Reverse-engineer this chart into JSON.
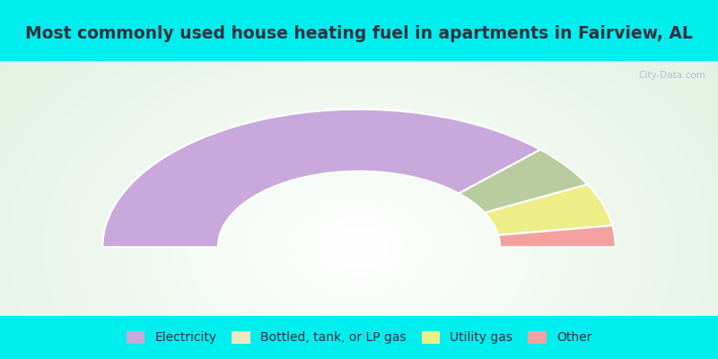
{
  "title": "Most commonly used house heating fuel in apartments in Fairview, AL",
  "segments": [
    {
      "label": "Electricity",
      "value": 75,
      "color": "#C9A8DC"
    },
    {
      "label": "Bottled, tank, or LP gas",
      "value": 10,
      "color": "#B8CCA0"
    },
    {
      "label": "Utility gas",
      "value": 10,
      "color": "#EEEE88"
    },
    {
      "label": "Other",
      "value": 5,
      "color": "#F4A0A0"
    }
  ],
  "legend_colors": [
    "#C9A8DC",
    "#EDE8C0",
    "#EEEE88",
    "#F4A0A0"
  ],
  "legend_labels": [
    "Electricity",
    "Bottled, tank, or LP gas",
    "Utility gas",
    "Other"
  ],
  "title_color": "#303040",
  "title_fontsize": 13.5,
  "top_bg": "#00EEEE",
  "watermark": "City-Data.com"
}
